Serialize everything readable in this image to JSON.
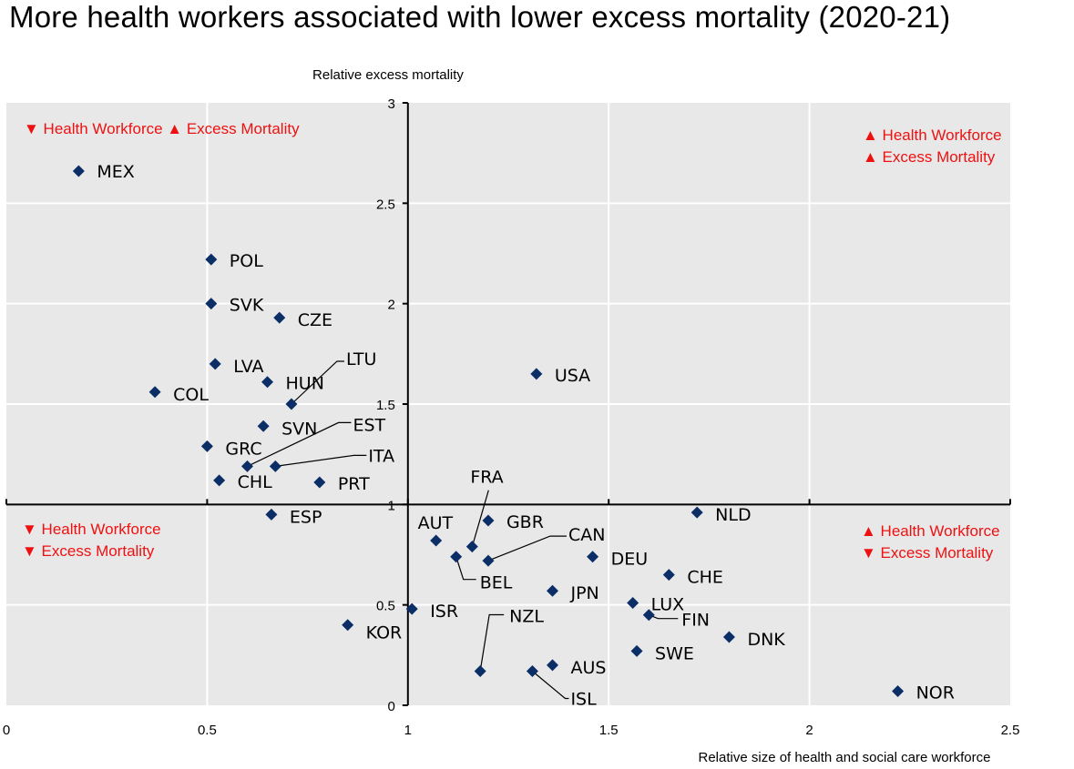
{
  "title": "More health workers associated with lower excess mortality (2020-21)",
  "colors": {
    "plot_background": "#e8e8e8",
    "gridline": "#ffffff",
    "marker": "#0b2e67",
    "quadrant_text": "#ee1111",
    "axis": "#000000"
  },
  "chart_data": {
    "type": "scatter",
    "title": "More health workers associated with lower excess mortality (2020-21)",
    "xlabel": "Relative size of health and social care workforce",
    "ylabel": "Relative excess mortality",
    "xlim": [
      0,
      2.5
    ],
    "ylim": [
      0,
      3
    ],
    "x_ticks": [
      "0",
      "0.5",
      "1",
      "1.5",
      "2",
      "2.5"
    ],
    "y_ticks": [
      "0",
      "0.5",
      "1",
      "1.5",
      "2",
      "2.5",
      "3"
    ],
    "x_tick_values": [
      0,
      0.5,
      1,
      1.5,
      2,
      2.5
    ],
    "y_tick_values": [
      0,
      0.5,
      1,
      1.5,
      2,
      2.5,
      3
    ],
    "axes_cross_at": {
      "x": 1,
      "y": 1
    },
    "grid": true,
    "marker": "diamond",
    "points": [
      {
        "label": "MEX",
        "x": 0.18,
        "y": 2.66
      },
      {
        "label": "POL",
        "x": 0.51,
        "y": 2.22
      },
      {
        "label": "SVK",
        "x": 0.51,
        "y": 2.0
      },
      {
        "label": "CZE",
        "x": 0.68,
        "y": 1.93
      },
      {
        "label": "LVA",
        "x": 0.52,
        "y": 1.7
      },
      {
        "label": "HUN",
        "x": 0.65,
        "y": 1.61
      },
      {
        "label": "COL",
        "x": 0.37,
        "y": 1.56
      },
      {
        "label": "LTU",
        "x": 0.71,
        "y": 1.5
      },
      {
        "label": "SVN",
        "x": 0.64,
        "y": 1.39
      },
      {
        "label": "GRC",
        "x": 0.5,
        "y": 1.29
      },
      {
        "label": "EST",
        "x": 0.6,
        "y": 1.19
      },
      {
        "label": "ITA",
        "x": 0.67,
        "y": 1.19
      },
      {
        "label": "CHL",
        "x": 0.53,
        "y": 1.12
      },
      {
        "label": "PRT",
        "x": 0.78,
        "y": 1.11
      },
      {
        "label": "ESP",
        "x": 0.66,
        "y": 0.95
      },
      {
        "label": "USA",
        "x": 1.32,
        "y": 1.65
      },
      {
        "label": "NLD",
        "x": 1.72,
        "y": 0.96
      },
      {
        "label": "GBR",
        "x": 1.2,
        "y": 0.92
      },
      {
        "label": "AUT",
        "x": 1.07,
        "y": 0.82
      },
      {
        "label": "FRA",
        "x": 1.16,
        "y": 0.79
      },
      {
        "label": "BEL",
        "x": 1.12,
        "y": 0.74
      },
      {
        "label": "CAN",
        "x": 1.2,
        "y": 0.72
      },
      {
        "label": "DEU",
        "x": 1.46,
        "y": 0.74
      },
      {
        "label": "CHE",
        "x": 1.65,
        "y": 0.65
      },
      {
        "label": "JPN",
        "x": 1.36,
        "y": 0.57
      },
      {
        "label": "LUX",
        "x": 1.56,
        "y": 0.51
      },
      {
        "label": "ISR",
        "x": 1.01,
        "y": 0.48
      },
      {
        "label": "FIN",
        "x": 1.6,
        "y": 0.45
      },
      {
        "label": "KOR",
        "x": 0.85,
        "y": 0.4
      },
      {
        "label": "DNK",
        "x": 1.8,
        "y": 0.34
      },
      {
        "label": "SWE",
        "x": 1.57,
        "y": 0.27
      },
      {
        "label": "AUS",
        "x": 1.36,
        "y": 0.2
      },
      {
        "label": "NZL",
        "x": 1.18,
        "y": 0.17
      },
      {
        "label": "ISL",
        "x": 1.31,
        "y": 0.17
      },
      {
        "label": "NOR",
        "x": 2.22,
        "y": 0.07
      }
    ],
    "annotations": [
      {
        "quadrant": "top-left",
        "lines": [
          "▼ Health Workforce ▲ Excess Mortality"
        ]
      },
      {
        "quadrant": "top-right",
        "lines": [
          "▲ Health Workforce",
          "▲ Excess Mortality"
        ]
      },
      {
        "quadrant": "bottom-left",
        "lines": [
          "▼ Health Workforce",
          "▼ Excess Mortality"
        ]
      },
      {
        "quadrant": "bottom-right",
        "lines": [
          "▲ Health Workforce",
          "▼ Excess Mortality"
        ]
      }
    ]
  }
}
